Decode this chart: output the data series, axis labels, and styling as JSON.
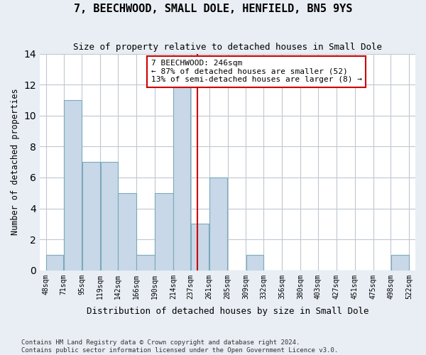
{
  "title": "7, BEECHWOOD, SMALL DOLE, HENFIELD, BN5 9YS",
  "subtitle": "Size of property relative to detached houses in Small Dole",
  "xlabel": "Distribution of detached houses by size in Small Dole",
  "ylabel": "Number of detached properties",
  "footnote1": "Contains HM Land Registry data © Crown copyright and database right 2024.",
  "footnote2": "Contains public sector information licensed under the Open Government Licence v3.0.",
  "bin_labels": [
    "48sqm",
    "71sqm",
    "95sqm",
    "119sqm",
    "142sqm",
    "166sqm",
    "190sqm",
    "214sqm",
    "237sqm",
    "261sqm",
    "285sqm",
    "309sqm",
    "332sqm",
    "356sqm",
    "380sqm",
    "403sqm",
    "427sqm",
    "451sqm",
    "475sqm",
    "498sqm",
    "522sqm"
  ],
  "bin_edges": [
    48,
    71,
    95,
    119,
    142,
    166,
    190,
    214,
    237,
    261,
    285,
    309,
    332,
    356,
    380,
    403,
    427,
    451,
    475,
    498,
    522
  ],
  "bar_heights": [
    1,
    11,
    7,
    7,
    5,
    1,
    5,
    12,
    3,
    6,
    0,
    1,
    0,
    0,
    0,
    0,
    0,
    0,
    0,
    1
  ],
  "bar_color": "#c8d8e8",
  "bar_edge_color": "#7aaabb",
  "property_value": 246,
  "property_line_color": "#cc0000",
  "annotation_text": "7 BEECHWOOD: 246sqm\n← 87% of detached houses are smaller (52)\n13% of semi-detached houses are larger (8) →",
  "annotation_box_color": "#cc0000",
  "annotation_box_facecolor": "white",
  "ylim": [
    0,
    14
  ],
  "yticks": [
    0,
    2,
    4,
    6,
    8,
    10,
    12,
    14
  ],
  "background_color": "#e8eef4",
  "plot_background": "white",
  "grid_color": "#c0c8d0"
}
